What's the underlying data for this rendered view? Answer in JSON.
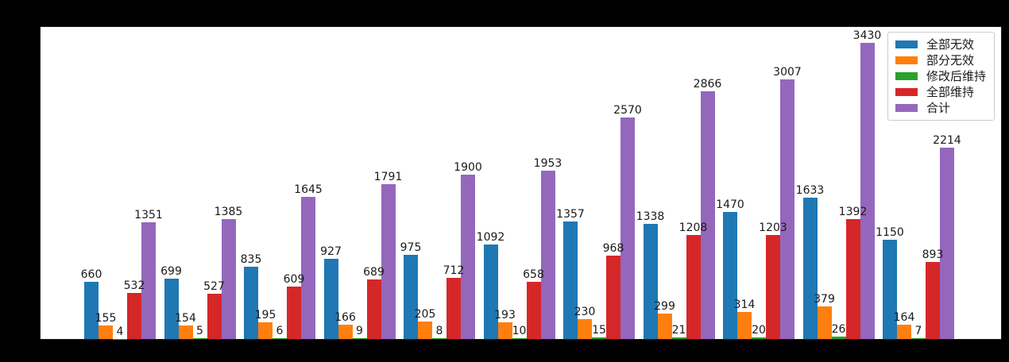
{
  "figure": {
    "background": "#000000",
    "plot_background": "#ffffff",
    "text_color": "#1a1a1a"
  },
  "chart_data": {
    "type": "bar",
    "title": "",
    "xlabel": "",
    "ylabel": "",
    "n_groups": 11,
    "series": [
      {
        "name": "全部无效",
        "color": "#1f77b4",
        "values": [
          660,
          699,
          835,
          927,
          975,
          1092,
          1357,
          1338,
          1470,
          1633,
          1150
        ]
      },
      {
        "name": "部分无效",
        "color": "#ff7f0e",
        "values": [
          155,
          154,
          195,
          166,
          205,
          193,
          230,
          299,
          314,
          379,
          164
        ]
      },
      {
        "name": "修改后维持",
        "color": "#2ca02c",
        "values": [
          4,
          5,
          6,
          9,
          8,
          10,
          15,
          21,
          20,
          26,
          7
        ]
      },
      {
        "name": "全部维持",
        "color": "#d62728",
        "values": [
          532,
          527,
          609,
          689,
          712,
          658,
          968,
          1208,
          1203,
          1392,
          893
        ]
      },
      {
        "name": "合计",
        "color": "#9467bd",
        "values": [
          1351,
          1385,
          1645,
          1791,
          1900,
          1953,
          2570,
          2866,
          3007,
          3430,
          2214
        ]
      }
    ],
    "bar_value_labels_shown": true,
    "ylim": [
      0,
      3614
    ],
    "grid": false,
    "x_tick_labels_visible": false,
    "y_tick_labels_visible": false,
    "legend_position": "upper-right"
  },
  "legend": {
    "items": [
      {
        "label": "全部无效",
        "color": "#1f77b4"
      },
      {
        "label": "部分无效",
        "color": "#ff7f0e"
      },
      {
        "label": "修改后维持",
        "color": "#2ca02c"
      },
      {
        "label": "全部维持",
        "color": "#d62728"
      },
      {
        "label": "合计",
        "color": "#9467bd"
      }
    ]
  }
}
